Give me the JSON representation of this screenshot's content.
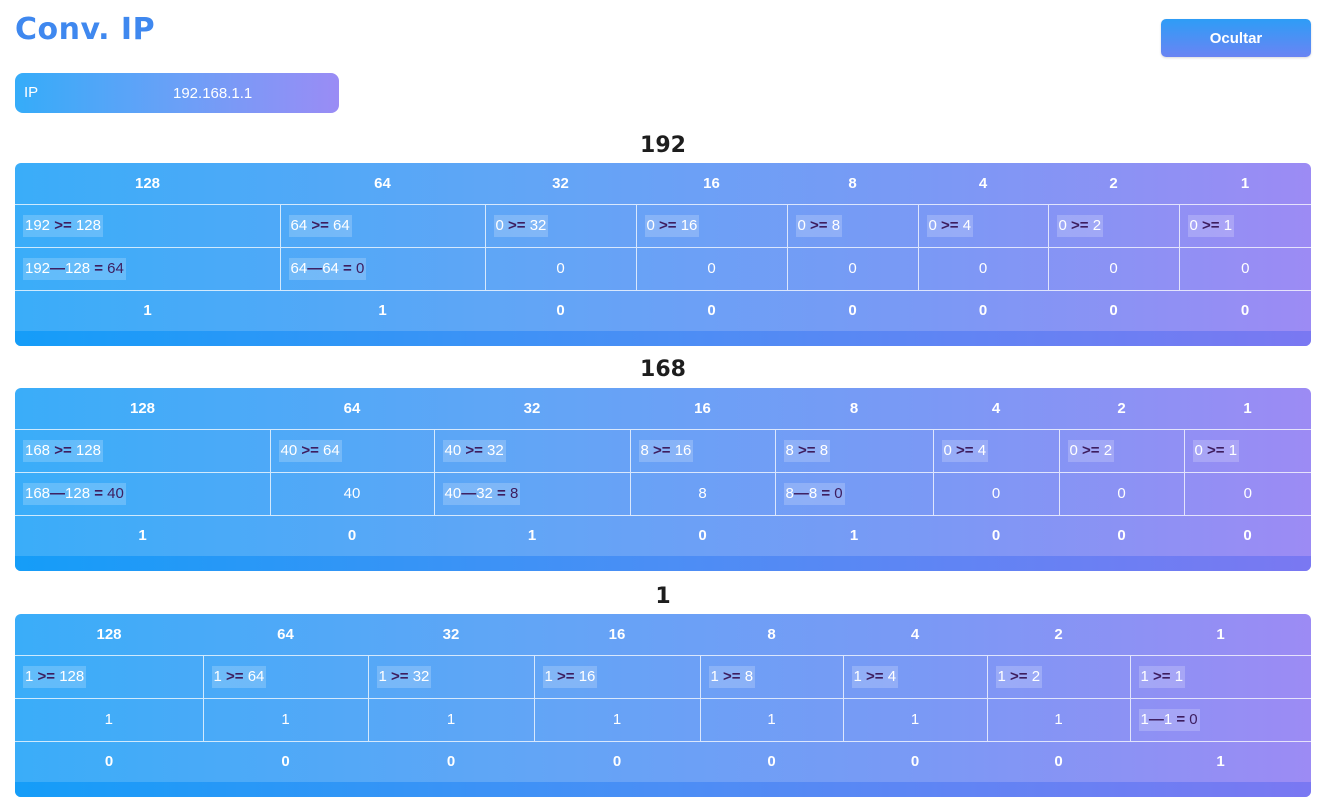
{
  "app": {
    "title": "Conv. IP",
    "hide_button": "Ocultar"
  },
  "ip": {
    "label": "IP",
    "value": "192.168.1.1"
  },
  "headers": [
    "128",
    "64",
    "32",
    "16",
    "8",
    "4",
    "2",
    "1"
  ],
  "colors": {
    "title": "#3f88ef",
    "operator": "#3d1d5e",
    "card_start": "#3aadf9",
    "card_end": "#9c8bf4"
  },
  "octets": [
    {
      "heading": "192",
      "widths": [
        265,
        205,
        151,
        151,
        131,
        130,
        131,
        132
      ],
      "compare": [
        [
          "192",
          "128"
        ],
        [
          "64",
          "64"
        ],
        [
          "0",
          "32"
        ],
        [
          "0",
          "16"
        ],
        [
          "0",
          "8"
        ],
        [
          "0",
          "4"
        ],
        [
          "0",
          "2"
        ],
        [
          "0",
          "1"
        ]
      ],
      "subtract": [
        {
          "type": "sub",
          "a": "192",
          "b": "128",
          "r": "64"
        },
        {
          "type": "sub",
          "a": "64",
          "b": "64",
          "r": "0"
        },
        {
          "type": "val",
          "v": "0"
        },
        {
          "type": "val",
          "v": "0"
        },
        {
          "type": "val",
          "v": "0"
        },
        {
          "type": "val",
          "v": "0"
        },
        {
          "type": "val",
          "v": "0"
        },
        {
          "type": "val",
          "v": "0"
        }
      ],
      "bits": [
        "1",
        "1",
        "0",
        "0",
        "0",
        "0",
        "0",
        "0"
      ]
    },
    {
      "heading": "168",
      "widths": [
        255,
        164,
        196,
        145,
        158,
        126,
        125,
        127
      ],
      "compare": [
        [
          "168",
          "128"
        ],
        [
          "40",
          "64"
        ],
        [
          "40",
          "32"
        ],
        [
          "8",
          "16"
        ],
        [
          "8",
          "8"
        ],
        [
          "0",
          "4"
        ],
        [
          "0",
          "2"
        ],
        [
          "0",
          "1"
        ]
      ],
      "subtract": [
        {
          "type": "sub",
          "a": "168",
          "b": "128",
          "r": "40"
        },
        {
          "type": "val",
          "v": "40"
        },
        {
          "type": "sub",
          "a": "40",
          "b": "32",
          "r": "8"
        },
        {
          "type": "val",
          "v": "8"
        },
        {
          "type": "sub",
          "a": "8",
          "b": "8",
          "r": "0"
        },
        {
          "type": "val",
          "v": "0"
        },
        {
          "type": "val",
          "v": "0"
        },
        {
          "type": "val",
          "v": "0"
        }
      ],
      "bits": [
        "1",
        "0",
        "1",
        "0",
        "1",
        "0",
        "0",
        "0"
      ]
    },
    {
      "heading": "1",
      "widths": [
        188,
        165,
        166,
        166,
        143,
        144,
        143,
        181
      ],
      "compare": [
        [
          "1",
          "128"
        ],
        [
          "1",
          "64"
        ],
        [
          "1",
          "32"
        ],
        [
          "1",
          "16"
        ],
        [
          "1",
          "8"
        ],
        [
          "1",
          "4"
        ],
        [
          "1",
          "2"
        ],
        [
          "1",
          "1"
        ]
      ],
      "subtract": [
        {
          "type": "val",
          "v": "1"
        },
        {
          "type": "val",
          "v": "1"
        },
        {
          "type": "val",
          "v": "1"
        },
        {
          "type": "val",
          "v": "1"
        },
        {
          "type": "val",
          "v": "1"
        },
        {
          "type": "val",
          "v": "1"
        },
        {
          "type": "val",
          "v": "1"
        },
        {
          "type": "sub",
          "a": "1",
          "b": "1",
          "r": "0"
        }
      ],
      "bits": [
        "0",
        "0",
        "0",
        "0",
        "0",
        "0",
        "0",
        "1"
      ]
    }
  ],
  "symbols": {
    "gte": ">=",
    "minus": "—",
    "equals": "="
  }
}
